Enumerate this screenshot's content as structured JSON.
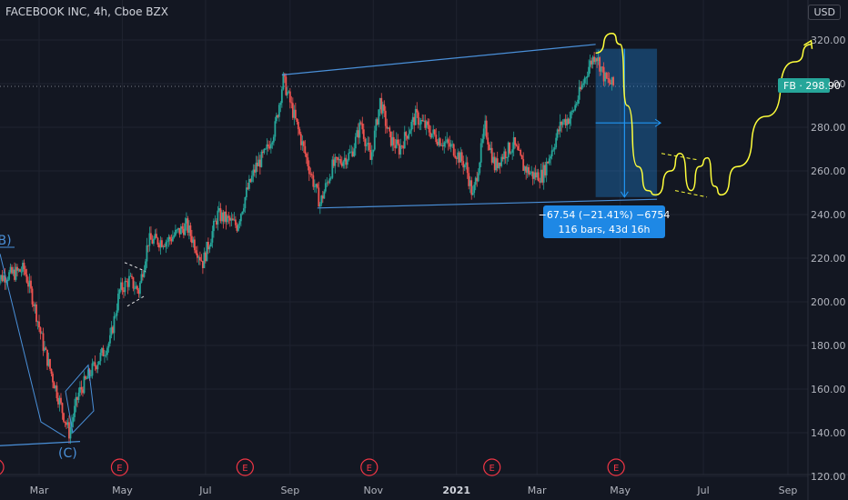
{
  "header": {
    "title": "FACEBOOK INC, 4h, Cboe BZX",
    "currency": "USD"
  },
  "price_badge": {
    "label": "FB · 298.90",
    "value": 298.9,
    "color": "#26a69a"
  },
  "measure": {
    "line1": "−67.54 (−21.41%) −6754",
    "line2": "116 bars, 43d 16h"
  },
  "waves": {
    "b": "(B)",
    "c": "(C)"
  },
  "colors": {
    "bg": "#131722",
    "up": "#26a69a",
    "down": "#ef5350",
    "trend": "#4a90d9",
    "proj": "#ffff3b",
    "event": "#f23645"
  },
  "chart_data": {
    "type": "candlestick",
    "ylim": [
      120,
      330
    ],
    "y_ticks": [
      120,
      140,
      160,
      180,
      200,
      220,
      240,
      260,
      280,
      300,
      320
    ],
    "x_ticks": [
      "Mar",
      "May",
      "Jul",
      "Sep",
      "Nov",
      "2021",
      "Mar",
      "May",
      "Jul",
      "Sep"
    ],
    "event_label": "E",
    "event_dates": [
      "2020-01-29",
      "2020-04-29",
      "2020-07-30",
      "2020-10-29",
      "2021-01-27",
      "2021-04-28"
    ],
    "price_path": [
      [
        "2020-01-29",
        210
      ],
      [
        "2020-02-05",
        212
      ],
      [
        "2020-02-12",
        213
      ],
      [
        "2020-02-19",
        215
      ],
      [
        "2020-02-26",
        200
      ],
      [
        "2020-03-04",
        180
      ],
      [
        "2020-03-11",
        165
      ],
      [
        "2020-03-18",
        150
      ],
      [
        "2020-03-23",
        140
      ],
      [
        "2020-03-30",
        158
      ],
      [
        "2020-04-08",
        168
      ],
      [
        "2020-04-15",
        175
      ],
      [
        "2020-04-22",
        182
      ],
      [
        "2020-04-29",
        205
      ],
      [
        "2020-05-06",
        210
      ],
      [
        "2020-05-13",
        205
      ],
      [
        "2020-05-20",
        228
      ],
      [
        "2020-06-03",
        228
      ],
      [
        "2020-06-17",
        235
      ],
      [
        "2020-06-29",
        218
      ],
      [
        "2020-07-10",
        240
      ],
      [
        "2020-07-24",
        235
      ],
      [
        "2020-07-31",
        250
      ],
      [
        "2020-08-07",
        262
      ],
      [
        "2020-08-14",
        268
      ],
      [
        "2020-08-21",
        280
      ],
      [
        "2020-08-27",
        302
      ],
      [
        "2020-09-04",
        285
      ],
      [
        "2020-09-11",
        270
      ],
      [
        "2020-09-18",
        255
      ],
      [
        "2020-09-23",
        245
      ],
      [
        "2020-10-02",
        262
      ],
      [
        "2020-10-09",
        265
      ],
      [
        "2020-10-16",
        268
      ],
      [
        "2020-10-23",
        282
      ],
      [
        "2020-10-30",
        265
      ],
      [
        "2020-11-06",
        292
      ],
      [
        "2020-11-13",
        275
      ],
      [
        "2020-11-20",
        270
      ],
      [
        "2020-12-02",
        285
      ],
      [
        "2020-12-16",
        276
      ],
      [
        "2020-12-30",
        270
      ],
      [
        "2021-01-08",
        262
      ],
      [
        "2021-01-13",
        248
      ],
      [
        "2021-01-22",
        280
      ],
      [
        "2021-01-29",
        262
      ],
      [
        "2021-02-05",
        268
      ],
      [
        "2021-02-12",
        272
      ],
      [
        "2021-02-19",
        262
      ],
      [
        "2021-02-26",
        258
      ],
      [
        "2021-03-05",
        258
      ],
      [
        "2021-03-12",
        270
      ],
      [
        "2021-03-19",
        282
      ],
      [
        "2021-03-26",
        285
      ],
      [
        "2021-04-01",
        295
      ],
      [
        "2021-04-08",
        308
      ],
      [
        "2021-04-13",
        314
      ],
      [
        "2021-04-20",
        302
      ],
      [
        "2021-04-26",
        299
      ]
    ],
    "channel": [
      [
        [
          "2020-08-26",
          304
        ],
        [
          "2021-04-13",
          318
        ]
      ],
      [
        [
          "2020-09-21",
          243
        ],
        [
          "2021-05-28",
          247
        ]
      ]
    ],
    "lower_wave_line": [
      [
        "2019-12-31",
        133
      ],
      [
        "2020-03-31",
        136
      ]
    ],
    "projection": [
      [
        "2021-04-13",
        314
      ],
      [
        "2021-04-25",
        323
      ],
      [
        "2021-05-01",
        318
      ],
      [
        "2021-05-06",
        290
      ],
      [
        "2021-05-14",
        262
      ],
      [
        "2021-05-21",
        251
      ],
      [
        "2021-05-27",
        249
      ],
      [
        "2021-06-07",
        260
      ],
      [
        "2021-06-14",
        268
      ],
      [
        "2021-06-22",
        251
      ],
      [
        "2021-06-28",
        262
      ],
      [
        "2021-07-04",
        266
      ],
      [
        "2021-07-09",
        253
      ],
      [
        "2021-07-14",
        249
      ],
      [
        "2021-07-26",
        262
      ],
      [
        "2021-08-16",
        285
      ],
      [
        "2021-09-06",
        310
      ],
      [
        "2021-09-18",
        318
      ]
    ],
    "measure_box": {
      "x_start": "2021-04-13",
      "x_end": "2021-05-28",
      "y_top": 316,
      "y_bottom": 248
    }
  }
}
